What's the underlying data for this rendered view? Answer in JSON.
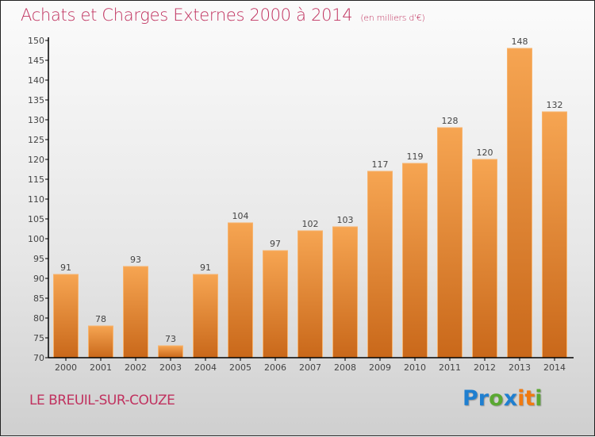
{
  "chart_data": {
    "type": "bar",
    "title": "Achats et Charges Externes 2000 à 2014",
    "subtitle": "(en milliers d'€)",
    "xlabel": "",
    "ylabel": "",
    "categories": [
      "2000",
      "2001",
      "2002",
      "2003",
      "2004",
      "2005",
      "2006",
      "2007",
      "2008",
      "2009",
      "2010",
      "2011",
      "2012",
      "2013",
      "2014"
    ],
    "values": [
      91,
      78,
      93,
      73,
      91,
      104,
      97,
      102,
      103,
      117,
      119,
      128,
      120,
      148,
      132
    ],
    "ylim": [
      70,
      150
    ],
    "yticks": [
      70,
      75,
      80,
      85,
      90,
      95,
      100,
      105,
      110,
      115,
      120,
      125,
      130,
      135,
      140,
      145,
      150
    ],
    "grid": false,
    "bar_color_top": "#f6a552",
    "bar_color_bottom": "#c9681a"
  },
  "footer": {
    "place": "LE BREUIL-SUR-COUZE",
    "logo": [
      {
        "text": "P",
        "color": "#1f7fd0"
      },
      {
        "text": "r",
        "color": "#1f7fd0"
      },
      {
        "text": "o",
        "color": "#5aa832"
      },
      {
        "text": "x",
        "color": "#1f7fd0"
      },
      {
        "text": "i",
        "color": "#f07a10"
      },
      {
        "text": "t",
        "color": "#f07a10"
      },
      {
        "text": "i",
        "color": "#5aa832"
      }
    ]
  }
}
